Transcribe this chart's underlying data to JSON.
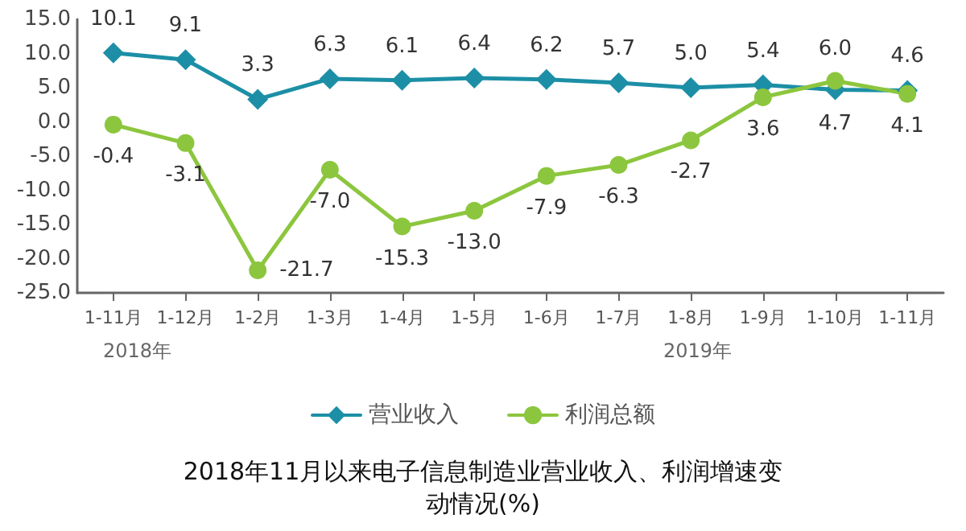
{
  "chart_data": {
    "type": "line",
    "title": "2018年11月以来电子信息制造业营业收入、利润增速变动情况(%)",
    "categories": [
      "1-11月",
      "1-12月",
      "1-2月",
      "1-3月",
      "1-4月",
      "1-5月",
      "1-6月",
      "1-7月",
      "1-8月",
      "1-9月",
      "1-10月",
      "1-11月"
    ],
    "series": [
      {
        "name": "营业收入",
        "color": "#1c8fa6",
        "marker": "diamond",
        "values": [
          10.1,
          9.1,
          3.3,
          6.3,
          6.1,
          6.4,
          6.2,
          5.7,
          5.0,
          5.4,
          4.7,
          4.6
        ],
        "value_labels": [
          "10.1",
          "9.1",
          "3.3",
          "6.3",
          "6.1",
          "6.4",
          "6.2",
          "5.7",
          "5.0",
          "5.4",
          "4.7",
          "4.6"
        ]
      },
      {
        "name": "利润总额",
        "color": "#8cc63e",
        "marker": "circle",
        "values": [
          -0.4,
          -3.1,
          -21.7,
          -7.0,
          -15.3,
          -13.0,
          -7.9,
          -6.3,
          -2.7,
          3.6,
          6.0,
          4.1
        ],
        "value_labels": [
          "-0.4",
          "-3.1",
          "-21.7",
          "-7.0",
          "-15.3",
          "-13.0",
          "-7.9",
          "-6.3",
          "-2.7",
          "3.6",
          "6.0",
          "4.1"
        ]
      }
    ],
    "ylim": [
      -25,
      15
    ],
    "yticks": [
      {
        "value": -25,
        "label": "-25.0"
      },
      {
        "value": -20,
        "label": "-20.0"
      },
      {
        "value": -15,
        "label": "-15.0"
      },
      {
        "value": -10,
        "label": "-10.0"
      },
      {
        "value": -5,
        "label": "-5.0"
      },
      {
        "value": 0,
        "label": "0.0"
      },
      {
        "value": 5,
        "label": "5.0"
      },
      {
        "value": 10,
        "label": "10.0"
      },
      {
        "value": 15,
        "label": "15.0"
      }
    ],
    "annotations": [
      "2018年",
      "2019年"
    ],
    "grid": false,
    "legend": "bottom",
    "line_style": "solid"
  }
}
